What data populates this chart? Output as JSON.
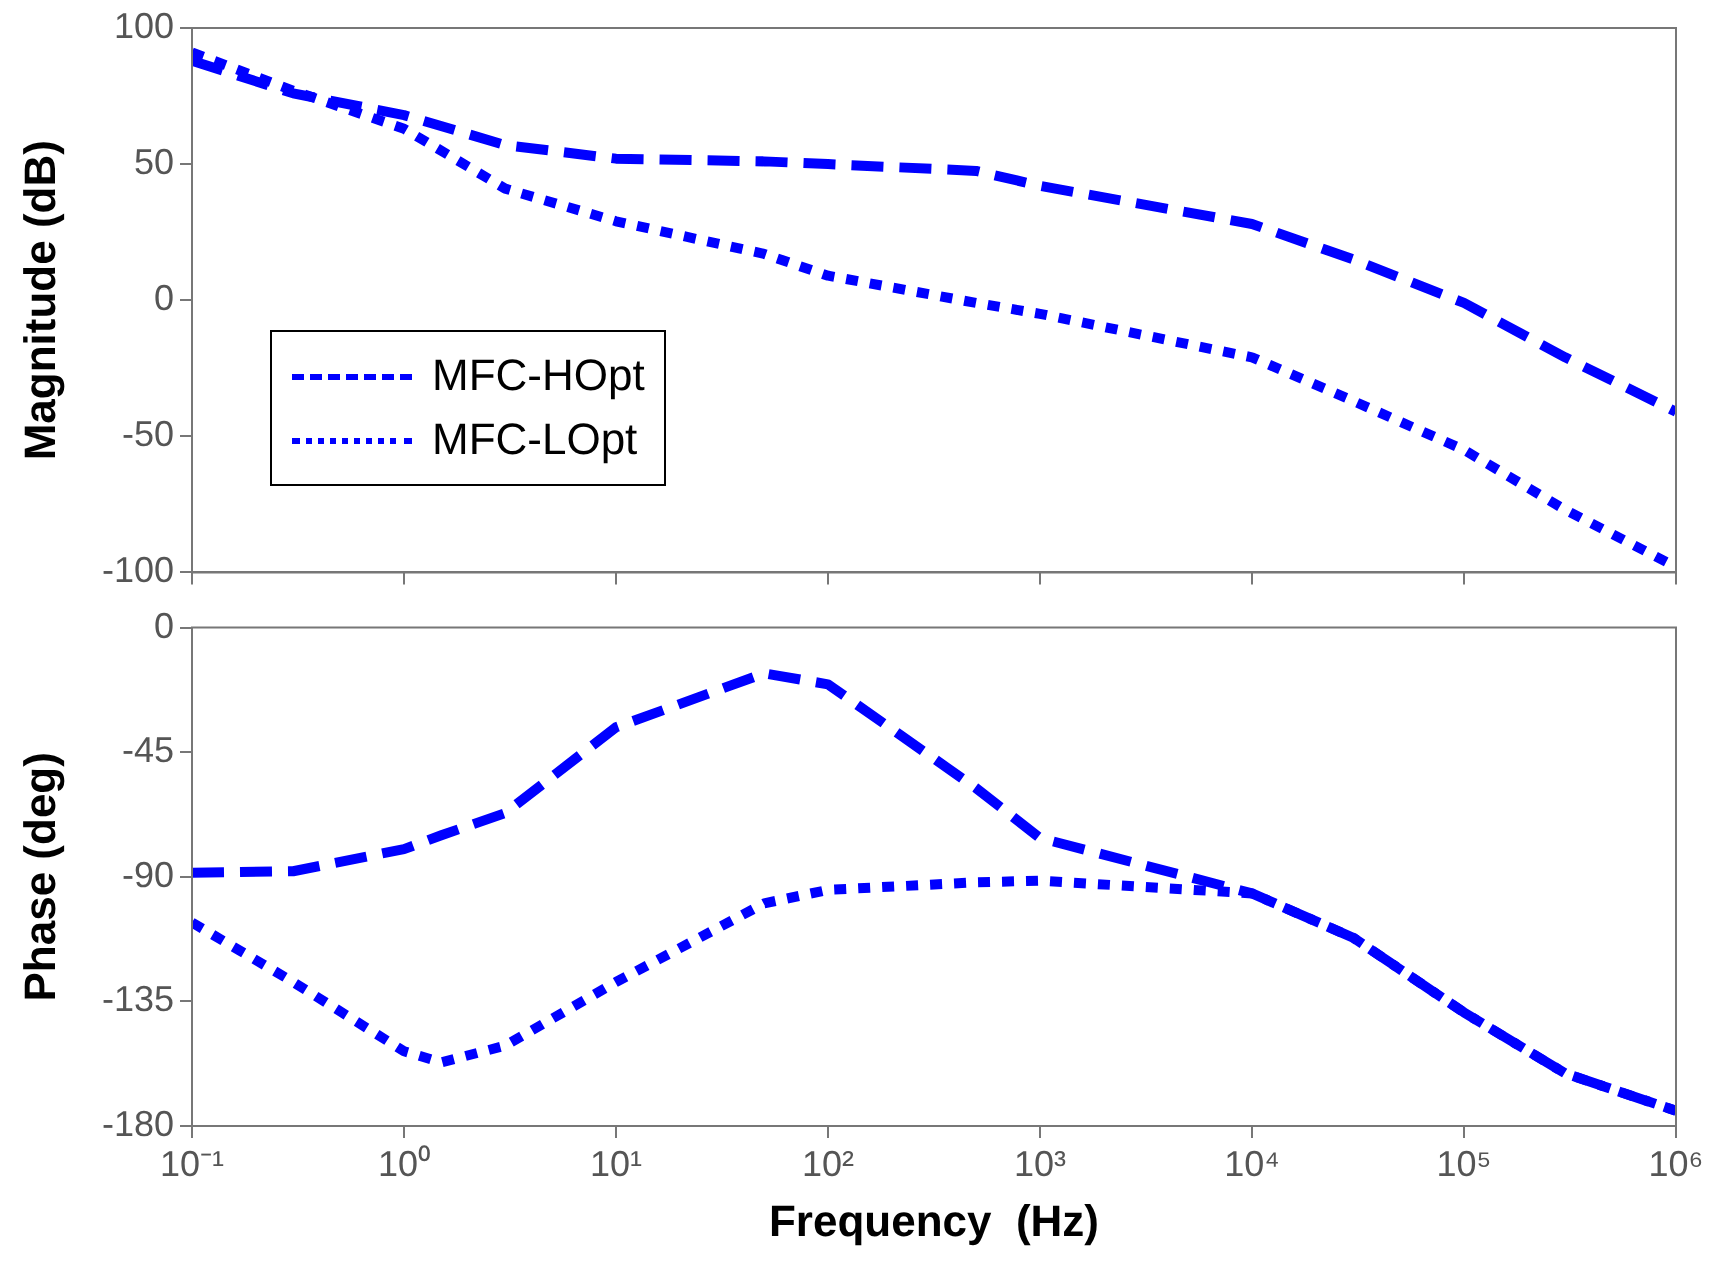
{
  "chart_data": [
    {
      "type": "line",
      "ylabel": "Magnitude (dB)",
      "log": "x",
      "grid": false,
      "marker": "none",
      "legend": "bottom left",
      "tick_labels": "y",
      "xlim": [
        0.1,
        1000000
      ],
      "xticks": [
        0.1,
        1,
        10,
        100,
        1000,
        10000,
        100000,
        1000000
      ],
      "ylim": [
        -100,
        100
      ],
      "yticks": [
        -100,
        -50,
        0,
        50,
        100
      ],
      "x": [
        0.1,
        0.3,
        1,
        3,
        10,
        50,
        100,
        500,
        1000,
        10000,
        30000,
        100000,
        300000,
        1000000
      ],
      "series": [
        {
          "name": "MFC-HOpt",
          "color": "#0000ff",
          "line_style": "dashed",
          "values": [
            88,
            76,
            68,
            57,
            52,
            51,
            50,
            47.5,
            42,
            28,
            15,
            -1,
            -21,
            -41
          ]
        },
        {
          "name": "MFC-LOpt",
          "color": "#0000ff",
          "line_style": "dotted",
          "values": [
            91,
            77,
            63,
            41,
            29,
            17,
            9,
            -1,
            -5,
            -21,
            -37,
            -55,
            -77,
            -98
          ]
        }
      ]
    },
    {
      "type": "line",
      "ylabel": "Phase (deg)",
      "xlabel": "Frequency  (Hz)",
      "log": "x",
      "grid": false,
      "marker": "none",
      "xlim": [
        0.1,
        1000000
      ],
      "xticks": [
        {
          "value": 0.1,
          "label": "10⁻¹"
        },
        {
          "value": 1,
          "label": "10⁰"
        },
        {
          "value": 10,
          "label": "10¹"
        },
        {
          "value": 100,
          "label": "10²"
        },
        {
          "value": 1000,
          "label": "10³"
        },
        {
          "value": 10000,
          "label": "10⁴"
        },
        {
          "value": 100000,
          "label": "10⁵"
        },
        {
          "value": 1000000,
          "label": "10⁶"
        }
      ],
      "ylim": [
        -180,
        0
      ],
      "yticks": [
        -180,
        -135,
        -90,
        -45,
        0
      ],
      "x": [
        0.1,
        0.3,
        1,
        1.5,
        3,
        10,
        50,
        100,
        500,
        1000,
        10000,
        30000,
        100000,
        300000,
        1000000
      ],
      "series": [
        {
          "color": "#0000ff",
          "line_style": "dashed",
          "values": [
            -88.5,
            -88,
            -80,
            -75,
            -67,
            -36,
            -16.5,
            -20.5,
            -58,
            -76,
            -96,
            -112,
            -139,
            -161,
            -174.5
          ]
        },
        {
          "color": "#0000ff",
          "line_style": "dotted",
          "values": [
            -106.5,
            -128,
            -153,
            -157,
            -151,
            -128,
            -99.6,
            -94.7,
            -92,
            -91.4,
            -96,
            -112,
            -139,
            -161,
            -174.5
          ]
        }
      ]
    }
  ]
}
